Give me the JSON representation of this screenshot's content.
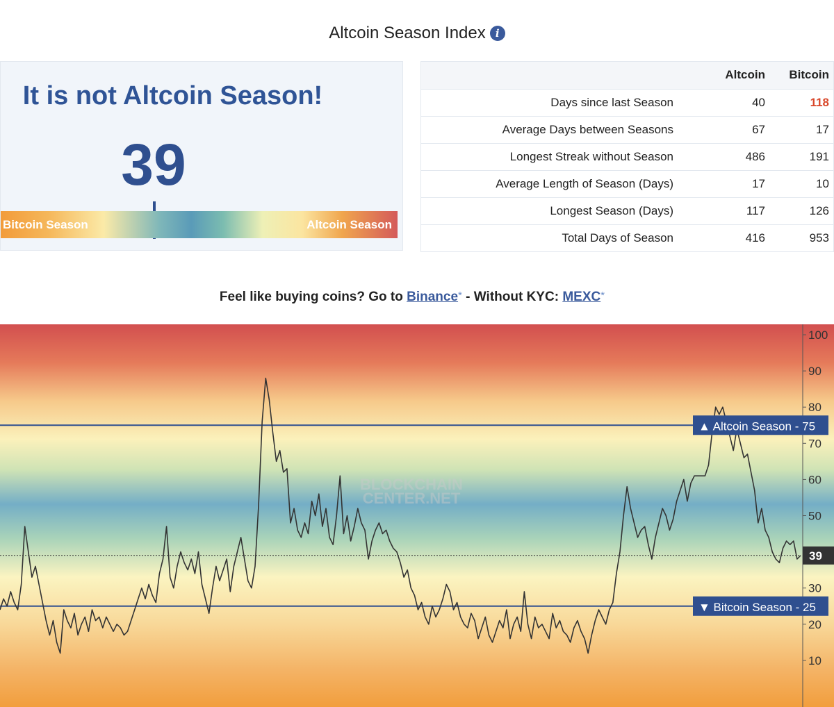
{
  "header": {
    "title": "Altcoin Season Index",
    "info_icon": "info-icon"
  },
  "status": {
    "headline": "It is not Altcoin Season!",
    "value": "39",
    "gauge_left_label": "Bitcoin Season",
    "gauge_right_label": "Altcoin Season",
    "gauge_fraction": 0.39
  },
  "stats": {
    "columns": [
      "Altcoin",
      "Bitcoin"
    ],
    "rows": [
      {
        "label": "Days since last Season",
        "altcoin": "40",
        "bitcoin": "118",
        "bitcoin_highlight": true
      },
      {
        "label": "Average Days between Seasons",
        "altcoin": "67",
        "bitcoin": "17"
      },
      {
        "label": "Longest Streak without Season",
        "altcoin": "486",
        "bitcoin": "191"
      },
      {
        "label": "Average Length of Season (Days)",
        "altcoin": "17",
        "bitcoin": "10"
      },
      {
        "label": "Longest Season (Days)",
        "altcoin": "117",
        "bitcoin": "126"
      },
      {
        "label": "Total Days of Season",
        "altcoin": "416",
        "bitcoin": "953"
      }
    ],
    "highlight_color": "#d9482b"
  },
  "promo": {
    "prefix": "Feel like buying coins? Go to",
    "link1": "Binance",
    "middle": "- Without KYC:",
    "link2": "MEXC",
    "star": "*"
  },
  "chart_data": {
    "type": "line",
    "ylim": [
      0,
      100
    ],
    "y_ticks": [
      10,
      20,
      30,
      40,
      50,
      60,
      70,
      80,
      90,
      100
    ],
    "grid": false,
    "current_value": 39,
    "reference_lines": [
      {
        "label": "Altcoin Season",
        "value": 75,
        "symbol": "▲"
      },
      {
        "label": "Bitcoin Season",
        "value": 25,
        "symbol": "▼"
      }
    ],
    "watermark": "BLOCKCHAIN CENTER.NET",
    "line_color": "#333333",
    "series": [
      {
        "values": [
          24,
          27,
          25,
          29,
          26,
          24,
          31,
          47,
          40,
          33,
          36,
          31,
          26,
          21,
          17,
          21,
          15,
          12,
          24,
          21,
          19,
          23,
          17,
          20,
          22,
          18,
          24,
          21,
          22,
          19,
          22,
          20,
          18,
          20,
          19,
          17,
          18,
          21,
          24,
          27,
          30,
          27,
          31,
          28,
          26,
          34,
          38,
          47,
          33,
          30,
          36,
          40,
          37,
          35,
          38,
          34,
          40,
          31,
          27,
          23,
          30,
          36,
          32,
          35,
          38,
          29,
          36,
          40,
          44,
          38,
          32,
          30,
          36,
          53,
          76,
          88,
          82,
          73,
          65,
          68,
          62,
          63,
          48,
          52,
          46,
          44,
          48,
          45,
          54,
          50,
          56,
          47,
          52,
          44,
          42,
          50,
          61,
          45,
          50,
          43,
          47,
          52,
          48,
          46,
          38,
          43,
          46,
          48,
          45,
          46,
          43,
          41,
          40,
          37,
          33,
          35,
          30,
          28,
          24,
          26,
          22,
          20,
          25,
          22,
          24,
          27,
          31,
          29,
          24,
          26,
          22,
          20,
          19,
          23,
          21,
          16,
          19,
          22,
          17,
          15,
          18,
          21,
          19,
          24,
          16,
          20,
          22,
          18,
          29,
          20,
          16,
          22,
          19,
          20,
          18,
          16,
          23,
          19,
          21,
          18,
          17,
          15,
          19,
          21,
          18,
          16,
          12,
          17,
          21,
          24,
          22,
          20,
          24,
          26,
          34,
          40,
          50,
          58,
          52,
          48,
          44,
          46,
          47,
          42,
          38,
          44,
          48,
          52,
          50,
          46,
          49,
          54,
          57,
          60,
          54,
          59,
          61,
          61,
          61,
          61,
          64,
          73,
          80,
          78,
          80,
          76,
          72,
          68,
          74,
          70,
          66,
          67,
          62,
          57,
          48,
          52,
          46,
          44,
          40,
          38,
          37,
          41,
          43,
          42,
          43,
          38,
          39
        ]
      }
    ]
  }
}
